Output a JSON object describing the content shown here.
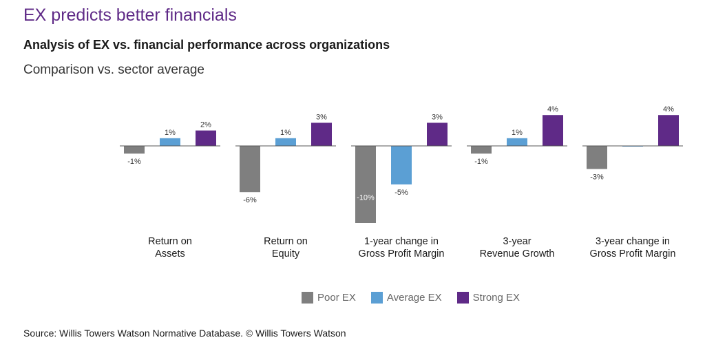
{
  "title": "EX predicts better financials",
  "subtitle": "Analysis of EX vs. financial performance across organizations",
  "caption": "Comparison vs. sector average",
  "source": "Source: Willis Towers Watson Normative Database. © Willis Towers Watson",
  "colors": {
    "poor": "#7f7f7f",
    "average": "#5b9fd4",
    "strong": "#5f2a87"
  },
  "chart_data": {
    "type": "bar",
    "categories": [
      [
        "Return on",
        "Assets"
      ],
      [
        "Return on",
        "Equity"
      ],
      [
        "1-year change in",
        "Gross Profit Margin"
      ],
      [
        "3-year",
        "Revenue Growth"
      ],
      [
        "3-year change in",
        "Gross Profit Margin"
      ]
    ],
    "series": [
      {
        "name": "Poor EX",
        "color_key": "poor",
        "values": [
          -1,
          -6,
          -10,
          -1,
          -3
        ],
        "labels": [
          "-1%",
          "-6%",
          "-10%",
          "-1%",
          "-3%"
        ]
      },
      {
        "name": "Average EX",
        "color_key": "average",
        "values": [
          1,
          1,
          -5,
          1,
          0
        ],
        "labels": [
          "1%",
          "1%",
          "-5%",
          "1%",
          ""
        ]
      },
      {
        "name": "Strong EX",
        "color_key": "strong",
        "values": [
          2,
          3,
          3,
          4,
          4
        ],
        "labels": [
          "2%",
          "3%",
          "3%",
          "4%",
          "4%"
        ]
      }
    ],
    "ylim": [
      -10,
      4
    ],
    "xlabel": "",
    "ylabel": ""
  }
}
